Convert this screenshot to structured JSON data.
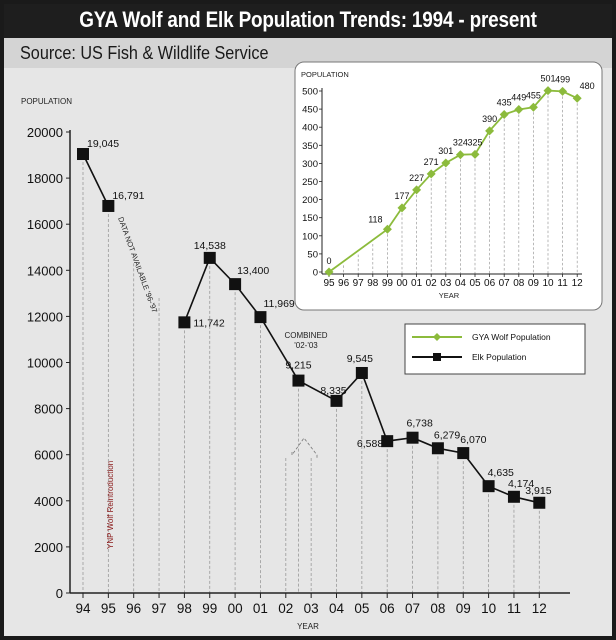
{
  "header": {
    "title": "GYA Wolf and Elk Population Trends: 1994 - present",
    "source": "Source: US Fish & Wildlife Service"
  },
  "colors": {
    "wolf": "#8cbb3c",
    "elk": "#111111",
    "title_bar": "#1e1e1e",
    "background": "#e6e6e6",
    "annotation": "#8b1a1a"
  },
  "chart_data": [
    {
      "type": "line",
      "name": "elk",
      "ylabel": "POPULATION",
      "xlabel": "YEAR",
      "ylim": [
        0,
        20000
      ],
      "yticks": [
        "0",
        "2000",
        "4000",
        "6000",
        "8000",
        "10000",
        "12000",
        "14000",
        "16000",
        "18000",
        "20000"
      ],
      "categories": [
        "94",
        "95",
        "96",
        "97",
        "98",
        "99",
        "00",
        "01",
        "02",
        "03",
        "04",
        "05",
        "06",
        "07",
        "08",
        "09",
        "10",
        "11",
        "12"
      ],
      "points": [
        {
          "x": "94",
          "y": 19045,
          "label": "19,045"
        },
        {
          "x": "95",
          "y": 16791,
          "label": "16,791"
        },
        {
          "x": "98",
          "y": 11742,
          "label": "11,742"
        },
        {
          "x": "99",
          "y": 14538,
          "label": "14,538"
        },
        {
          "x": "00",
          "y": 13400,
          "label": "13,400"
        },
        {
          "x": "01",
          "y": 11969,
          "label": "11,969"
        },
        {
          "x": "02.5",
          "y": 9215,
          "label": "9,215"
        },
        {
          "x": "04",
          "y": 8335,
          "label": "8,335"
        },
        {
          "x": "05",
          "y": 9545,
          "label": "9,545"
        },
        {
          "x": "06",
          "y": 6588,
          "label": "6,588"
        },
        {
          "x": "07",
          "y": 6738,
          "label": "6,738"
        },
        {
          "x": "08",
          "y": 6279,
          "label": "6,279"
        },
        {
          "x": "09",
          "y": 6070,
          "label": "6,070"
        },
        {
          "x": "10",
          "y": 4635,
          "label": "4,635"
        },
        {
          "x": "11",
          "y": 4174,
          "label": "4,174"
        },
        {
          "x": "12",
          "y": 3915,
          "label": "3,915"
        }
      ],
      "annotations": {
        "data_gap": "DATA NOT AVAILABLE '96-'97",
        "combined_line1": "COMBINED",
        "combined_line2": "'02-'03",
        "reintroduction": "YNP Wolf Reintroduction"
      }
    },
    {
      "type": "line",
      "name": "wolf",
      "ylabel": "POPULATION",
      "xlabel": "YEAR",
      "ylim": [
        0,
        500
      ],
      "yticks": [
        "0",
        "50",
        "100",
        "150",
        "200",
        "250",
        "300",
        "350",
        "400",
        "450",
        "500"
      ],
      "categories": [
        "95",
        "96",
        "97",
        "98",
        "99",
        "00",
        "01",
        "02",
        "03",
        "04",
        "05",
        "06",
        "07",
        "08",
        "09",
        "10",
        "11",
        "12"
      ],
      "points": [
        {
          "x": "95",
          "y": 0,
          "label": "0"
        },
        {
          "x": "99",
          "y": 118,
          "label": "118"
        },
        {
          "x": "00",
          "y": 177,
          "label": "177"
        },
        {
          "x": "01",
          "y": 227,
          "label": "227"
        },
        {
          "x": "02",
          "y": 271,
          "label": "271"
        },
        {
          "x": "03",
          "y": 301,
          "label": "301"
        },
        {
          "x": "04",
          "y": 324,
          "label": "324"
        },
        {
          "x": "05",
          "y": 325,
          "label": "325"
        },
        {
          "x": "06",
          "y": 390,
          "label": "390"
        },
        {
          "x": "07",
          "y": 435,
          "label": "435"
        },
        {
          "x": "08",
          "y": 449,
          "label": "449"
        },
        {
          "x": "09",
          "y": 455,
          "label": "455"
        },
        {
          "x": "10",
          "y": 501,
          "label": "501"
        },
        {
          "x": "11",
          "y": 499,
          "label": "499"
        },
        {
          "x": "12",
          "y": 480,
          "label": "480"
        }
      ]
    }
  ],
  "legend": {
    "wolf_label": "GYA Wolf Population",
    "elk_label": "Elk Population"
  }
}
